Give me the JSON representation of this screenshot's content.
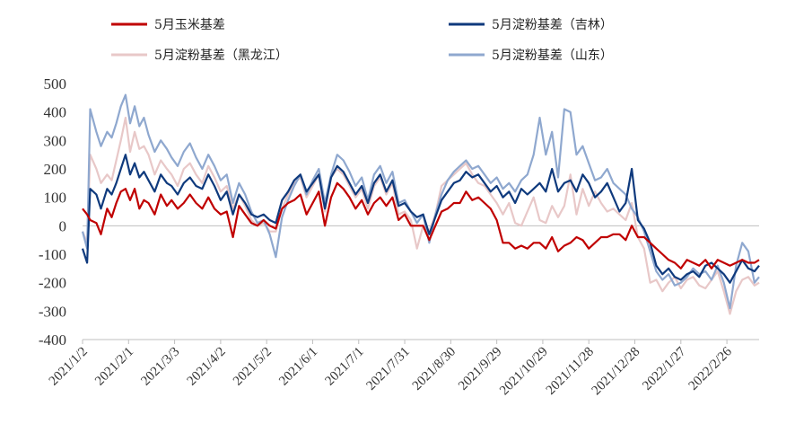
{
  "chart_data": {
    "type": "line",
    "title": "",
    "xlabel": "",
    "ylabel": "",
    "ylim": [
      -400,
      500
    ],
    "yticks": [
      500,
      400,
      300,
      200,
      100,
      0,
      -100,
      -200,
      -300,
      -400
    ],
    "x_tick_labels": [
      "2021/1/2",
      "2021/2/1",
      "2021/3/3",
      "2021/4/2",
      "2021/5/2",
      "2021/6/1",
      "2021/7/1",
      "2021/7/31",
      "2021/8/30",
      "2021/9/29",
      "2021/10/29",
      "2021/11/28",
      "2021/12/28",
      "2022/1/27",
      "2022/2/26"
    ],
    "x_tick_days": [
      0,
      30,
      60,
      90,
      120,
      150,
      180,
      210,
      240,
      270,
      300,
      330,
      360,
      390,
      420
    ],
    "x_range_days": [
      0,
      441
    ],
    "legend_position": "top",
    "series": [
      {
        "name": "5月玉米基差",
        "color": "#C00000",
        "x": [
          0,
          3,
          5,
          9,
          12,
          16,
          19,
          22,
          25,
          28,
          31,
          34,
          37,
          40,
          43,
          47,
          51,
          55,
          58,
          62,
          66,
          70,
          74,
          78,
          82,
          86,
          90,
          94,
          98,
          102,
          106,
          110,
          114,
          118,
          122,
          126,
          130,
          134,
          138,
          142,
          146,
          150,
          154,
          158,
          162,
          166,
          170,
          174,
          178,
          182,
          186,
          190,
          194,
          198,
          202,
          206,
          210,
          214,
          218,
          222,
          226,
          230,
          234,
          238,
          242,
          246,
          250,
          254,
          258,
          262,
          266,
          270,
          274,
          278,
          282,
          286,
          290,
          294,
          298,
          302,
          306,
          310,
          314,
          318,
          322,
          326,
          330,
          334,
          338,
          342,
          346,
          350,
          354,
          358,
          362,
          366,
          370,
          374,
          378,
          382,
          386,
          390,
          394,
          398,
          402,
          406,
          410,
          414,
          418,
          422,
          426,
          430,
          434,
          438,
          441
        ],
        "y": [
          60,
          40,
          20,
          10,
          -30,
          60,
          30,
          80,
          120,
          130,
          90,
          130,
          60,
          90,
          80,
          40,
          110,
          70,
          90,
          60,
          80,
          110,
          80,
          60,
          100,
          60,
          40,
          50,
          -40,
          70,
          40,
          10,
          0,
          20,
          0,
          -10,
          60,
          80,
          90,
          110,
          40,
          80,
          120,
          0,
          100,
          150,
          130,
          100,
          60,
          90,
          40,
          80,
          100,
          70,
          100,
          20,
          40,
          0,
          0,
          0,
          -50,
          0,
          50,
          60,
          80,
          80,
          120,
          90,
          100,
          80,
          60,
          20,
          -60,
          -60,
          -80,
          -70,
          -80,
          -60,
          -60,
          -80,
          -40,
          -90,
          -70,
          -60,
          -40,
          -50,
          -80,
          -60,
          -40,
          -40,
          -30,
          -30,
          -50,
          0,
          -40,
          -40,
          -60,
          -80,
          -100,
          -120,
          -130,
          -150,
          -120,
          -130,
          -140,
          -120,
          -150,
          -120,
          -130,
          -140,
          -130,
          -120,
          -130,
          -130,
          -120
        ]
      },
      {
        "name": "5月淀粉基差（吉林）",
        "color": "#0F3A7D",
        "x": [
          0,
          3,
          5,
          9,
          12,
          16,
          19,
          22,
          25,
          28,
          31,
          34,
          37,
          40,
          43,
          47,
          51,
          55,
          58,
          62,
          66,
          70,
          74,
          78,
          82,
          86,
          90,
          94,
          98,
          102,
          106,
          110,
          114,
          118,
          122,
          126,
          130,
          134,
          138,
          142,
          146,
          150,
          154,
          158,
          162,
          166,
          170,
          174,
          178,
          182,
          186,
          190,
          194,
          198,
          202,
          206,
          210,
          214,
          218,
          222,
          226,
          230,
          234,
          238,
          242,
          246,
          250,
          254,
          258,
          262,
          266,
          270,
          274,
          278,
          282,
          286,
          290,
          294,
          298,
          302,
          306,
          310,
          314,
          318,
          322,
          326,
          330,
          334,
          338,
          342,
          346,
          350,
          354,
          358,
          362,
          366,
          370,
          374,
          378,
          382,
          386,
          390,
          394,
          398,
          402,
          406,
          410,
          414,
          418,
          422,
          426,
          430,
          434,
          438,
          441
        ],
        "y": [
          -80,
          -130,
          130,
          110,
          60,
          130,
          110,
          150,
          200,
          250,
          180,
          220,
          170,
          190,
          160,
          120,
          180,
          150,
          140,
          110,
          150,
          170,
          140,
          130,
          180,
          140,
          90,
          120,
          40,
          110,
          80,
          40,
          30,
          40,
          20,
          10,
          90,
          120,
          160,
          180,
          120,
          150,
          180,
          60,
          170,
          210,
          190,
          150,
          110,
          140,
          80,
          150,
          180,
          120,
          160,
          70,
          80,
          50,
          30,
          40,
          -30,
          30,
          90,
          120,
          150,
          160,
          190,
          170,
          180,
          150,
          120,
          140,
          100,
          120,
          80,
          130,
          110,
          130,
          150,
          120,
          200,
          120,
          150,
          160,
          120,
          180,
          150,
          100,
          120,
          150,
          100,
          50,
          80,
          200,
          20,
          -10,
          -60,
          -140,
          -170,
          -150,
          -180,
          -190,
          -170,
          -160,
          -180,
          -140,
          -130,
          -150,
          -170,
          -200,
          -160,
          -120,
          -150,
          -160,
          -140
        ]
      },
      {
        "name": "5月淀粉基差（黑龙江）",
        "color": "#E8C8C8",
        "x": [
          0,
          3,
          5,
          9,
          12,
          16,
          19,
          22,
          25,
          28,
          31,
          34,
          37,
          40,
          43,
          47,
          51,
          55,
          58,
          62,
          66,
          70,
          74,
          78,
          82,
          86,
          90,
          94,
          98,
          102,
          106,
          110,
          114,
          118,
          122,
          126,
          130,
          134,
          138,
          142,
          146,
          150,
          154,
          158,
          162,
          166,
          170,
          174,
          178,
          182,
          186,
          190,
          194,
          198,
          202,
          206,
          210,
          214,
          218,
          222,
          226,
          230,
          234,
          238,
          242,
          246,
          250,
          254,
          258,
          262,
          266,
          270,
          274,
          278,
          282,
          286,
          290,
          294,
          298,
          302,
          306,
          310,
          314,
          318,
          322,
          326,
          330,
          334,
          338,
          342,
          346,
          350,
          354,
          358,
          362,
          366,
          370,
          374,
          378,
          382,
          386,
          390,
          394,
          398,
          402,
          406,
          410,
          414,
          418,
          422,
          426,
          430,
          434,
          438,
          441
        ],
        "y": [
          -20,
          -60,
          250,
          200,
          150,
          180,
          160,
          230,
          300,
          380,
          260,
          330,
          270,
          280,
          250,
          180,
          230,
          200,
          180,
          140,
          200,
          220,
          180,
          150,
          210,
          170,
          120,
          140,
          60,
          110,
          70,
          20,
          0,
          10,
          -20,
          -20,
          60,
          110,
          150,
          170,
          100,
          140,
          180,
          50,
          170,
          200,
          180,
          140,
          100,
          130,
          60,
          140,
          170,
          110,
          150,
          40,
          50,
          20,
          -80,
          0,
          -20,
          40,
          140,
          160,
          180,
          200,
          220,
          180,
          150,
          140,
          110,
          80,
          40,
          80,
          10,
          0,
          50,
          100,
          20,
          10,
          70,
          30,
          70,
          180,
          40,
          130,
          70,
          120,
          80,
          50,
          60,
          40,
          20,
          80,
          -40,
          -80,
          -200,
          -190,
          -230,
          -200,
          -180,
          -220,
          -190,
          -180,
          -210,
          -220,
          -190,
          -160,
          -230,
          -310,
          -230,
          -190,
          -180,
          -210,
          -200
        ]
      },
      {
        "name": "5月淀粉基差（山东）",
        "color": "#8FA8CF",
        "x": [
          0,
          3,
          5,
          9,
          12,
          16,
          19,
          22,
          25,
          28,
          31,
          34,
          37,
          40,
          43,
          47,
          51,
          55,
          58,
          62,
          66,
          70,
          74,
          78,
          82,
          86,
          90,
          94,
          98,
          102,
          106,
          110,
          114,
          118,
          122,
          126,
          130,
          134,
          138,
          142,
          146,
          150,
          154,
          158,
          162,
          166,
          170,
          174,
          178,
          182,
          186,
          190,
          194,
          198,
          202,
          206,
          210,
          214,
          218,
          222,
          226,
          230,
          234,
          238,
          242,
          246,
          250,
          254,
          258,
          262,
          266,
          270,
          274,
          278,
          282,
          286,
          290,
          294,
          298,
          302,
          306,
          310,
          314,
          318,
          322,
          326,
          330,
          334,
          338,
          342,
          346,
          350,
          354,
          358,
          362,
          366,
          370,
          374,
          378,
          382,
          386,
          390,
          394,
          398,
          402,
          406,
          410,
          414,
          418,
          422,
          426,
          430,
          434,
          438,
          441
        ],
        "y": [
          -20,
          -80,
          410,
          330,
          280,
          330,
          310,
          360,
          420,
          460,
          360,
          420,
          350,
          380,
          320,
          260,
          300,
          270,
          240,
          210,
          260,
          290,
          240,
          200,
          250,
          210,
          160,
          180,
          80,
          150,
          110,
          50,
          10,
          20,
          -30,
          -110,
          30,
          90,
          140,
          180,
          110,
          160,
          200,
          80,
          180,
          250,
          230,
          190,
          140,
          170,
          90,
          180,
          210,
          150,
          190,
          80,
          90,
          50,
          10,
          40,
          -60,
          40,
          110,
          160,
          190,
          210,
          230,
          200,
          210,
          180,
          150,
          170,
          130,
          150,
          120,
          160,
          180,
          250,
          380,
          250,
          330,
          170,
          410,
          400,
          250,
          280,
          220,
          160,
          170,
          200,
          150,
          130,
          110,
          60,
          30,
          -20,
          -90,
          -160,
          -190,
          -170,
          -210,
          -200,
          -180,
          -150,
          -170,
          -160,
          -190,
          -140,
          -200,
          -290,
          -140,
          -60,
          -90,
          -200,
          -180
        ]
      }
    ]
  }
}
